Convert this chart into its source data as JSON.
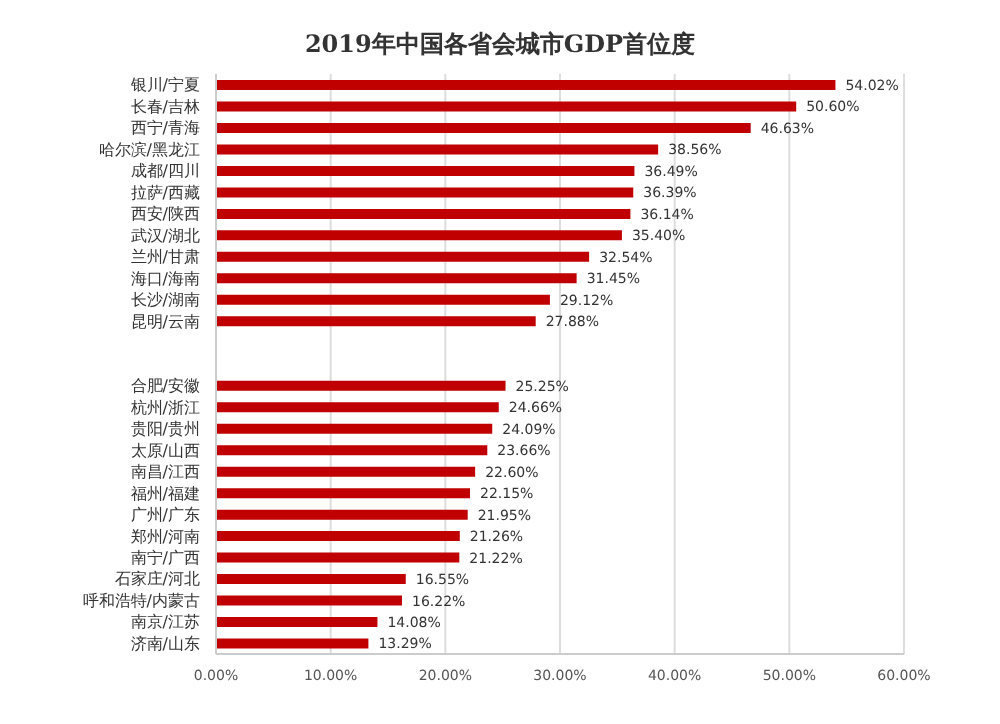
{
  "chart_data": {
    "type": "bar",
    "orientation": "horizontal",
    "title": "2019年中国各省会城市GDP首位度",
    "categories": [
      "银川/宁夏",
      "长春/吉林",
      "西宁/青海",
      "哈尔滨/黑龙江",
      "成都/四川",
      "拉萨/西藏",
      "西安/陕西",
      "武汉/湖北",
      "兰州/甘肃",
      "海口/海南",
      "长沙/湖南",
      "昆明/云南",
      null,
      null,
      "合肥/安徽",
      "杭州/浙江",
      "贵阳/贵州",
      "太原/山西",
      "南昌/江西",
      "福州/福建",
      "广州/广东",
      "郑州/河南",
      "南宁/广西",
      "石家庄/河北",
      "呼和浩特/内蒙古",
      "南京/江苏",
      "济南/山东"
    ],
    "values": [
      54.02,
      50.6,
      46.63,
      38.56,
      36.49,
      36.39,
      36.14,
      35.4,
      32.54,
      31.45,
      29.12,
      27.88,
      null,
      null,
      25.25,
      24.66,
      24.09,
      23.66,
      22.6,
      22.15,
      21.95,
      21.26,
      21.22,
      16.55,
      16.22,
      14.08,
      13.29
    ],
    "value_labels": [
      "54.02%",
      "50.60%",
      "46.63%",
      "38.56%",
      "36.49%",
      "36.39%",
      "36.14%",
      "35.40%",
      "32.54%",
      "31.45%",
      "29.12%",
      "27.88%",
      null,
      null,
      "25.25%",
      "24.66%",
      "24.09%",
      "23.66%",
      "22.60%",
      "22.15%",
      "21.95%",
      "21.26%",
      "21.22%",
      "16.55%",
      "16.22%",
      "14.08%",
      "13.29%"
    ],
    "color": "#c00000",
    "xlim": [
      0,
      60
    ],
    "xticks": [
      {
        "value": 0,
        "label": "0.00%"
      },
      {
        "value": 10,
        "label": "10.00%"
      },
      {
        "value": 20,
        "label": "20.00%"
      },
      {
        "value": 30,
        "label": "30.00%"
      },
      {
        "value": 40,
        "label": "40.00%"
      },
      {
        "value": 50,
        "label": "50.00%"
      },
      {
        "value": 60,
        "label": "60.00%"
      }
    ],
    "grid": "x",
    "legend": false
  }
}
